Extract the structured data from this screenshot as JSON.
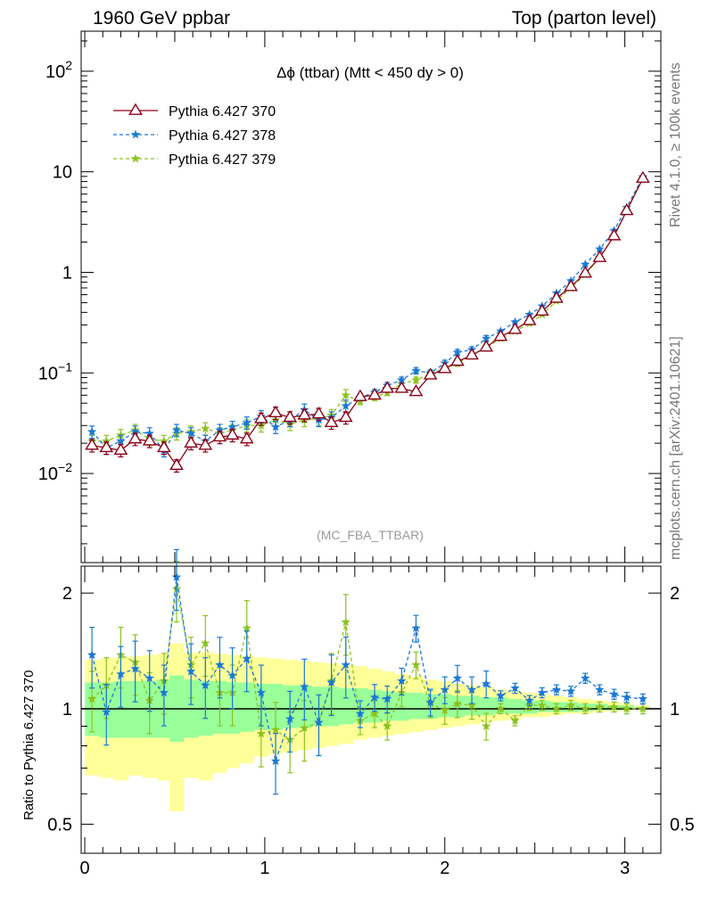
{
  "header": {
    "left": "1960 GeV ppbar",
    "right": "Top (parton level)"
  },
  "side": {
    "rivet": "Rivet 4.1.0, ≥ 100k events",
    "mcplots": "mcplots.cern.ch [arXiv:2401.10621]"
  },
  "colors": {
    "s370": "#8b0018",
    "s378": "#1a78d6",
    "s379": "#8cc21f",
    "band_outer": "#ffff99",
    "band_inner": "#99ff99"
  },
  "chart_data": [
    {
      "type": "line",
      "title": "Δϕ (ttbar) (Mtt < 450 dy > 0)",
      "watermark": "(MC_FBA_TTBAR)",
      "yscale": "log",
      "xlim": [
        -0.02,
        3.2
      ],
      "ylim": [
        0.0013,
        250
      ],
      "yticklabels": [
        {
          "value": 0.01,
          "base": "10",
          "exp": "−2"
        },
        {
          "value": 0.1,
          "base": "10",
          "exp": "−1"
        },
        {
          "value": 1,
          "base": "1",
          "exp": ""
        },
        {
          "value": 10,
          "base": "10",
          "exp": ""
        },
        {
          "value": 100,
          "base": "10",
          "exp": "2"
        }
      ],
      "legend_position": "top-left",
      "x": [
        0.04,
        0.12,
        0.2,
        0.28,
        0.36,
        0.44,
        0.51,
        0.59,
        0.67,
        0.75,
        0.82,
        0.9,
        0.98,
        1.06,
        1.14,
        1.22,
        1.3,
        1.37,
        1.45,
        1.53,
        1.61,
        1.68,
        1.76,
        1.84,
        1.92,
        2.0,
        2.07,
        2.15,
        2.23,
        2.31,
        2.39,
        2.47,
        2.54,
        2.62,
        2.7,
        2.78,
        2.86,
        2.94,
        3.01,
        3.1
      ],
      "series": [
        {
          "name": "Pythia 6.427 370",
          "color": "#8b0018",
          "style": "solid",
          "marker": "triangle",
          "values": [
            0.019,
            0.018,
            0.017,
            0.022,
            0.021,
            0.018,
            0.012,
            0.02,
            0.019,
            0.023,
            0.024,
            0.022,
            0.035,
            0.04,
            0.036,
            0.038,
            0.039,
            0.032,
            0.036,
            0.058,
            0.06,
            0.07,
            0.07,
            0.065,
            0.095,
            0.11,
            0.13,
            0.15,
            0.18,
            0.23,
            0.27,
            0.33,
            0.41,
            0.55,
            0.72,
            0.98,
            1.4,
            2.3,
            4.1,
            8.6
          ]
        },
        {
          "name": "Pythia 6.427 378",
          "color": "#1a78d6",
          "style": "dashed",
          "marker": "star",
          "values": [
            0.026,
            0.018,
            0.021,
            0.026,
            0.025,
            0.017,
            0.027,
            0.025,
            0.021,
            0.027,
            0.029,
            0.032,
            0.037,
            0.029,
            0.034,
            0.043,
            0.034,
            0.036,
            0.047,
            0.057,
            0.064,
            0.075,
            0.085,
            0.105,
            0.1,
            0.125,
            0.16,
            0.17,
            0.22,
            0.26,
            0.32,
            0.38,
            0.46,
            0.62,
            0.82,
            1.2,
            1.7,
            2.6,
            4.4,
            8.9
          ]
        },
        {
          "name": "Pythia 6.427 379",
          "color": "#8cc21f",
          "style": "dashed",
          "marker": "star",
          "values": [
            0.021,
            0.021,
            0.024,
            0.027,
            0.022,
            0.021,
            0.025,
            0.026,
            0.028,
            0.025,
            0.027,
            0.03,
            0.03,
            0.034,
            0.031,
            0.034,
            0.035,
            0.038,
            0.06,
            0.052,
            0.057,
            0.064,
            0.078,
            0.085,
            0.098,
            0.11,
            0.125,
            0.15,
            0.18,
            0.22,
            0.26,
            0.31,
            0.38,
            0.52,
            0.7,
            0.95,
            1.4,
            2.3,
            4.1,
            8.7
          ]
        }
      ]
    },
    {
      "type": "line",
      "ylabel": "Ratio to Pythia 6.427 370",
      "yscale": "log",
      "xlim": [
        -0.02,
        3.2
      ],
      "ylim": [
        0.42,
        2.35
      ],
      "yticklabels": [
        "0.5",
        "1",
        "2"
      ],
      "xticklabels": [
        "0",
        "1",
        "2",
        "3"
      ],
      "x": [
        0.04,
        0.12,
        0.2,
        0.28,
        0.36,
        0.44,
        0.51,
        0.59,
        0.67,
        0.75,
        0.82,
        0.9,
        0.98,
        1.06,
        1.14,
        1.22,
        1.3,
        1.37,
        1.45,
        1.53,
        1.61,
        1.68,
        1.76,
        1.84,
        1.92,
        2.0,
        2.07,
        2.15,
        2.23,
        2.31,
        2.39,
        2.47,
        2.54,
        2.62,
        2.7,
        2.78,
        2.86,
        2.94,
        3.01,
        3.1
      ],
      "band_outer": {
        "low": [
          0.67,
          0.66,
          0.65,
          0.67,
          0.66,
          0.65,
          0.54,
          0.66,
          0.65,
          0.68,
          0.7,
          0.72,
          0.75,
          0.76,
          0.77,
          0.78,
          0.79,
          0.8,
          0.81,
          0.83,
          0.84,
          0.85,
          0.86,
          0.87,
          0.88,
          0.89,
          0.9,
          0.91,
          0.92,
          0.93,
          0.94,
          0.95,
          0.95,
          0.96,
          0.97,
          0.97,
          0.98,
          0.985,
          0.99,
          0.995
        ],
        "high": [
          1.34,
          1.35,
          1.36,
          1.37,
          1.38,
          1.39,
          1.48,
          1.4,
          1.4,
          1.39,
          1.38,
          1.37,
          1.36,
          1.35,
          1.34,
          1.33,
          1.32,
          1.31,
          1.3,
          1.29,
          1.27,
          1.25,
          1.23,
          1.21,
          1.19,
          1.18,
          1.16,
          1.15,
          1.14,
          1.12,
          1.11,
          1.1,
          1.09,
          1.08,
          1.07,
          1.06,
          1.05,
          1.04,
          1.03,
          1.02
        ]
      },
      "band_inner": {
        "low": [
          0.85,
          0.84,
          0.84,
          0.84,
          0.84,
          0.84,
          0.82,
          0.84,
          0.85,
          0.86,
          0.86,
          0.87,
          0.88,
          0.88,
          0.89,
          0.89,
          0.9,
          0.9,
          0.91,
          0.92,
          0.92,
          0.93,
          0.93,
          0.94,
          0.94,
          0.95,
          0.95,
          0.96,
          0.96,
          0.97,
          0.97,
          0.97,
          0.98,
          0.98,
          0.98,
          0.985,
          0.99,
          0.99,
          0.995,
          0.998
        ],
        "high": [
          1.17,
          1.17,
          1.18,
          1.18,
          1.18,
          1.19,
          1.22,
          1.19,
          1.18,
          1.18,
          1.17,
          1.17,
          1.16,
          1.16,
          1.15,
          1.15,
          1.14,
          1.14,
          1.13,
          1.13,
          1.12,
          1.11,
          1.1,
          1.1,
          1.09,
          1.09,
          1.08,
          1.08,
          1.07,
          1.07,
          1.06,
          1.05,
          1.05,
          1.04,
          1.04,
          1.03,
          1.03,
          1.02,
          1.02,
          1.01
        ]
      },
      "series": [
        {
          "name": "Pythia 6.427 378",
          "color": "#1a78d6",
          "values": [
            1.38,
            0.98,
            1.23,
            1.27,
            1.2,
            1.1,
            2.2,
            1.25,
            1.15,
            1.3,
            1.22,
            1.35,
            1.1,
            0.73,
            0.94,
            1.14,
            0.92,
            1.17,
            1.3,
            0.97,
            1.07,
            1.06,
            1.18,
            1.62,
            1.04,
            1.12,
            1.2,
            1.12,
            1.16,
            1.08,
            1.13,
            1.05,
            1.1,
            1.12,
            1.11,
            1.2,
            1.12,
            1.09,
            1.07,
            1.06
          ]
        },
        {
          "name": "Pythia 6.427 379",
          "color": "#8cc21f",
          "values": [
            1.06,
            1.15,
            1.38,
            1.32,
            1.05,
            1.18,
            2.05,
            1.3,
            1.48,
            1.1,
            1.1,
            1.62,
            0.86,
            0.88,
            0.83,
            0.89,
            0.92,
            1.18,
            1.68,
            0.93,
            0.97,
            0.9,
            1.1,
            1.3,
            1.03,
            0.99,
            1.03,
            1.02,
            0.9,
            1.0,
            0.93,
            1.02,
            1.02,
            1.0,
            1.02,
            1.0,
            1.01,
            1.01,
            1.0,
            1.0
          ]
        }
      ]
    }
  ]
}
